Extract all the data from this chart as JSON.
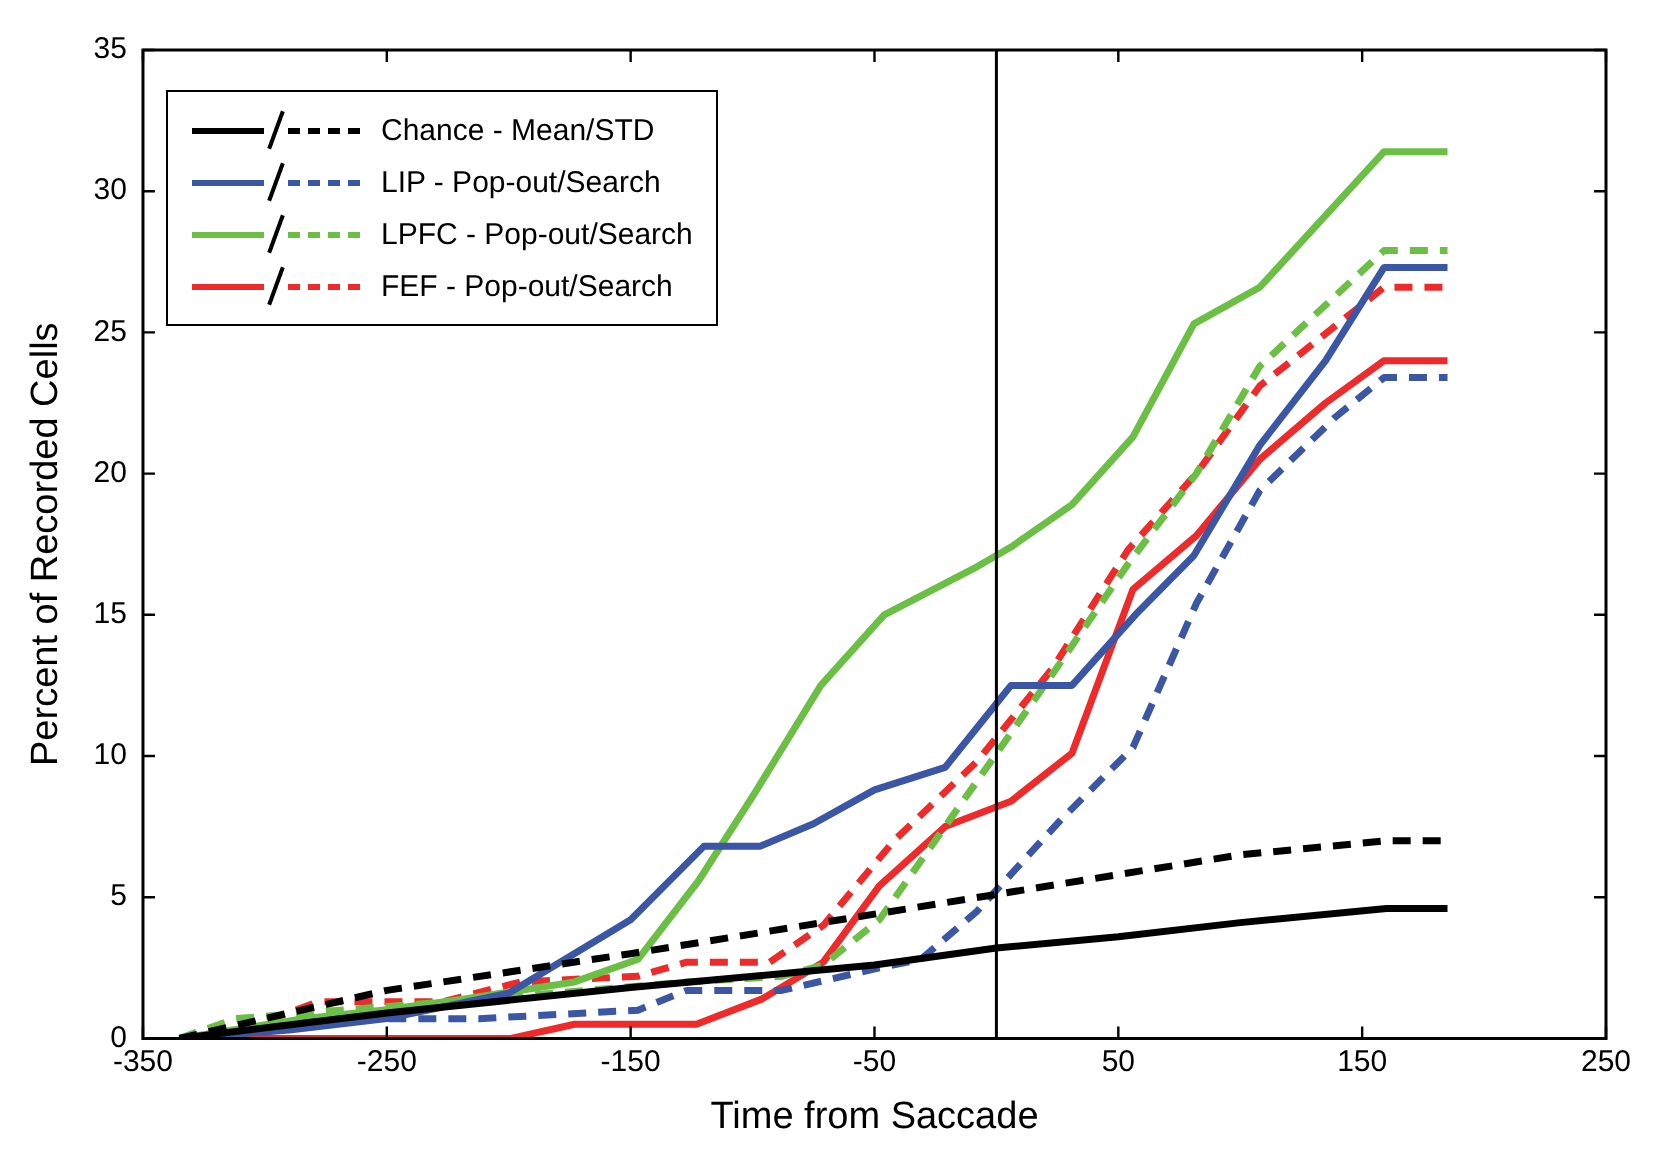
{
  "chart_data": {
    "type": "line",
    "xlabel": "Time from Saccade",
    "ylabel": "Percent of Recorded Cells",
    "xlim": [
      -350,
      250
    ],
    "xticks": [
      -350,
      -250,
      -150,
      -50,
      50,
      150,
      250
    ],
    "ylim": [
      0,
      35
    ],
    "yticks": [
      0,
      5,
      10,
      15,
      20,
      25,
      30,
      35
    ],
    "grid": false,
    "legend": "top left",
    "marker": "none",
    "ref_lines": [
      {
        "axis": "x",
        "value": 0,
        "color": "#000000"
      }
    ],
    "series": [
      {
        "name": "Chance - Mean/STD",
        "color": "#000000",
        "line_style": "solid",
        "x": [
          -335,
          -250,
          -150,
          -50,
          0,
          50,
          100,
          160,
          185
        ],
        "values": [
          0,
          0.9,
          1.8,
          2.6,
          3.2,
          3.6,
          4.1,
          4.6,
          4.6
        ]
      },
      {
        "color": "#000000",
        "line_style": "dashed",
        "x": [
          -335,
          -250,
          -150,
          -50,
          0,
          50,
          100,
          160,
          185
        ],
        "values": [
          0,
          1.7,
          3.0,
          4.4,
          5.1,
          5.8,
          6.5,
          7.0,
          7.0
        ]
      },
      {
        "name": "LIP - Pop-out/Search",
        "color": "#3a56a5",
        "line_style": "solid",
        "x": [
          -335,
          -290,
          -250,
          -200,
          -150,
          -120,
          -97,
          -75,
          -50,
          -21,
          6,
          31,
          57,
          81,
          108,
          135,
          159,
          185
        ],
        "values": [
          0,
          0.3,
          0.7,
          1.6,
          4.2,
          6.8,
          6.8,
          7.6,
          8.8,
          9.6,
          12.5,
          12.5,
          15,
          17.1,
          21,
          24,
          27.3,
          27.3
        ]
      },
      {
        "color": "#3a56a5",
        "line_style": "dashed",
        "x": [
          -335,
          -269,
          -212,
          -147,
          -127,
          -88,
          -48,
          -31,
          -8,
          26,
          56,
          82,
          108,
          139,
          159,
          185
        ],
        "values": [
          0,
          0.7,
          0.7,
          1.0,
          1.7,
          1.7,
          2.5,
          2.8,
          4.5,
          7.7,
          10.3,
          15.4,
          19.4,
          22,
          23.4,
          23.4
        ]
      },
      {
        "name": "LPFC - Pop-out/Search",
        "color": "#6cbf45",
        "line_style": "solid",
        "x": [
          -335,
          -284,
          -252,
          -218,
          -173,
          -147,
          -122,
          -99,
          -72,
          -46,
          -8,
          6,
          31,
          56,
          81,
          108,
          159,
          185
        ],
        "values": [
          0,
          0.7,
          1.0,
          1.4,
          2.0,
          2.8,
          5.6,
          8.7,
          12.5,
          15,
          16.7,
          17.4,
          18.9,
          21.3,
          25.3,
          26.6,
          31.4,
          31.4
        ]
      },
      {
        "color": "#6cbf45",
        "line_style": "dashed",
        "x": [
          -335,
          -312,
          -269,
          -195,
          -127,
          -88,
          -71,
          -48,
          -8,
          23,
          54,
          82,
          108,
          159,
          185
        ],
        "values": [
          0,
          0.7,
          1.0,
          1.5,
          2.0,
          2.2,
          2.6,
          4.2,
          9.1,
          12.9,
          16.8,
          20,
          23.8,
          27.9,
          27.9
        ]
      },
      {
        "name": "FEF - Pop-out/Search",
        "color": "#ee2a2a",
        "line_style": "solid",
        "x": [
          -335,
          -199,
          -173,
          -123,
          -96,
          -71,
          -48,
          -21,
          6,
          31,
          56,
          82,
          108,
          135,
          159,
          185
        ],
        "values": [
          0,
          0,
          0.5,
          0.5,
          1.4,
          2.7,
          5.4,
          7.5,
          8.4,
          10.1,
          15.9,
          17.8,
          20.5,
          22.5,
          24,
          24
        ]
      },
      {
        "color": "#ee2a2a",
        "line_style": "dashed",
        "x": [
          -335,
          -297,
          -278,
          -227,
          -195,
          -147,
          -127,
          -93,
          -71,
          -42,
          -8,
          23,
          54,
          82,
          108,
          159,
          185
        ],
        "values": [
          0,
          0.7,
          1.3,
          1.3,
          2.0,
          2.2,
          2.7,
          2.7,
          4.0,
          7.0,
          9.8,
          13.1,
          17.3,
          20,
          23.1,
          26.6,
          26.6
        ]
      }
    ]
  }
}
